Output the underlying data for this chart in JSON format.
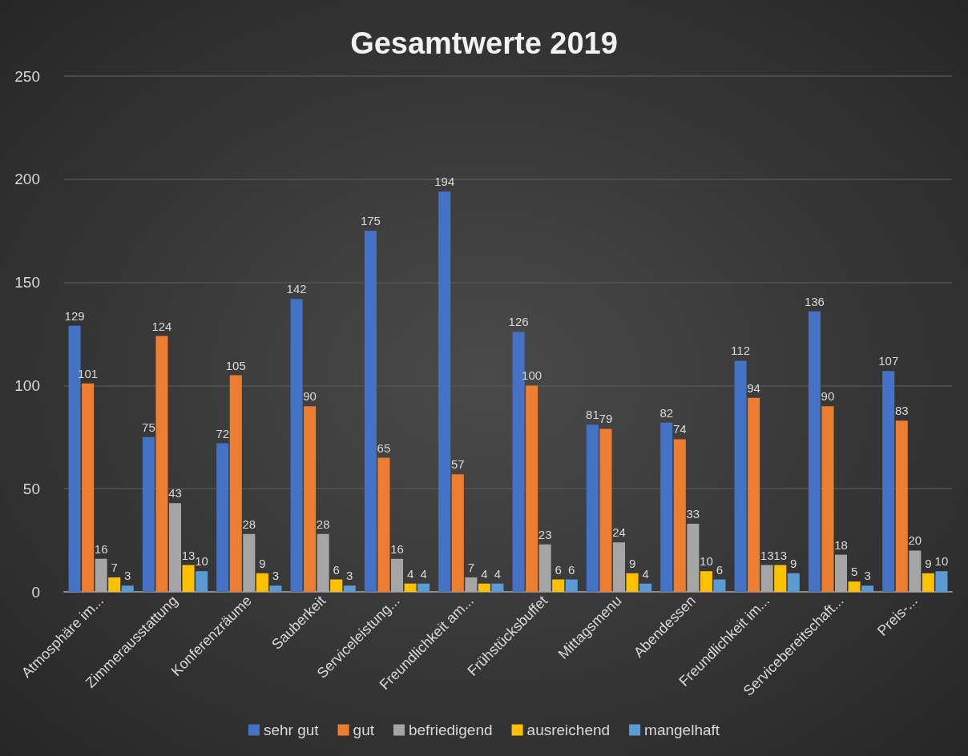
{
  "chart_data": {
    "type": "bar",
    "title": "Gesamtwerte 2019",
    "categories": [
      "Atmosphäre im...",
      "Zimmerausstattung",
      "Konferenzräume",
      "Sauberkeit",
      "Serviceleistung...",
      "Freundlichkeit am...",
      "Frühstücksbuffet",
      "Mittagsmenu",
      "Abendessen",
      "Freundlichkeit im...",
      "Servicebereitschaft...",
      "Preis-..."
    ],
    "series": [
      {
        "name": "sehr gut",
        "color": "#4472c4",
        "values": [
          129,
          75,
          72,
          142,
          175,
          194,
          126,
          81,
          82,
          112,
          136,
          107
        ]
      },
      {
        "name": "gut",
        "color": "#ed7d31",
        "values": [
          101,
          124,
          105,
          90,
          65,
          57,
          100,
          79,
          74,
          94,
          90,
          83
        ]
      },
      {
        "name": "befriedigend",
        "color": "#a5a5a5",
        "values": [
          16,
          43,
          28,
          28,
          16,
          7,
          23,
          24,
          33,
          13,
          18,
          20
        ]
      },
      {
        "name": "ausreichend",
        "color": "#ffc000",
        "values": [
          7,
          13,
          9,
          6,
          4,
          4,
          6,
          9,
          10,
          13,
          5,
          9
        ]
      },
      {
        "name": "mangelhaft",
        "color": "#5b9bd5",
        "values": [
          3,
          10,
          3,
          3,
          4,
          4,
          6,
          4,
          6,
          9,
          3,
          10
        ]
      }
    ],
    "ylim": [
      0,
      250
    ],
    "yticks": [
      0,
      50,
      100,
      150,
      200,
      250
    ],
    "grid": "y",
    "legend": "bottom",
    "data_labels": true
  }
}
